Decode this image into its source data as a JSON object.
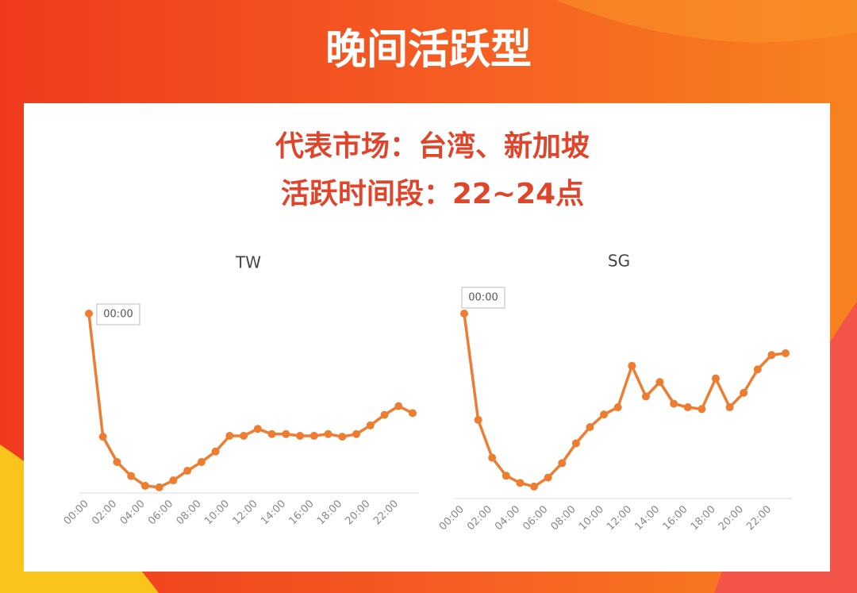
{
  "header": {
    "title": "晚间活跃型",
    "lines": [
      "代表市场：台湾、新加坡",
      "活跃时间段：22~24点"
    ]
  },
  "chart_data": [
    {
      "type": "line",
      "title": "TW",
      "annotation": "00:00",
      "color": "#ed7d31",
      "categories": [
        "00:00",
        null,
        "02:00",
        null,
        "04:00",
        null,
        "06:00",
        null,
        "08:00",
        null,
        "10:00",
        null,
        "12:00",
        null,
        "14:00",
        null,
        "16:00",
        null,
        "18:00",
        null,
        "20:00",
        null,
        "22:00",
        null
      ],
      "values": [
        100,
        29.5,
        15,
        7,
        1.4,
        0.5,
        4.5,
        10,
        15,
        21,
        30,
        30,
        34,
        31,
        31,
        30,
        30,
        31,
        29.5,
        31,
        36,
        42,
        47,
        43
      ],
      "ylim": [
        0,
        100
      ]
    },
    {
      "type": "line",
      "title": "SG",
      "annotation": "00:00",
      "color": "#ed7d31",
      "categories": [
        "00:00",
        null,
        "02:00",
        null,
        "04:00",
        null,
        "06:00",
        null,
        "08:00",
        null,
        "10:00",
        null,
        "12:00",
        null,
        "14:00",
        null,
        "16:00",
        null,
        "18:00",
        null,
        "20:00",
        null,
        "22:00",
        null
      ],
      "values": [
        100,
        41,
        20,
        10,
        6,
        4,
        9,
        17,
        28,
        37,
        44,
        48,
        71,
        54,
        62,
        50,
        48,
        47,
        64,
        48,
        56,
        69,
        77,
        78
      ],
      "ylim": [
        0,
        100
      ]
    }
  ]
}
